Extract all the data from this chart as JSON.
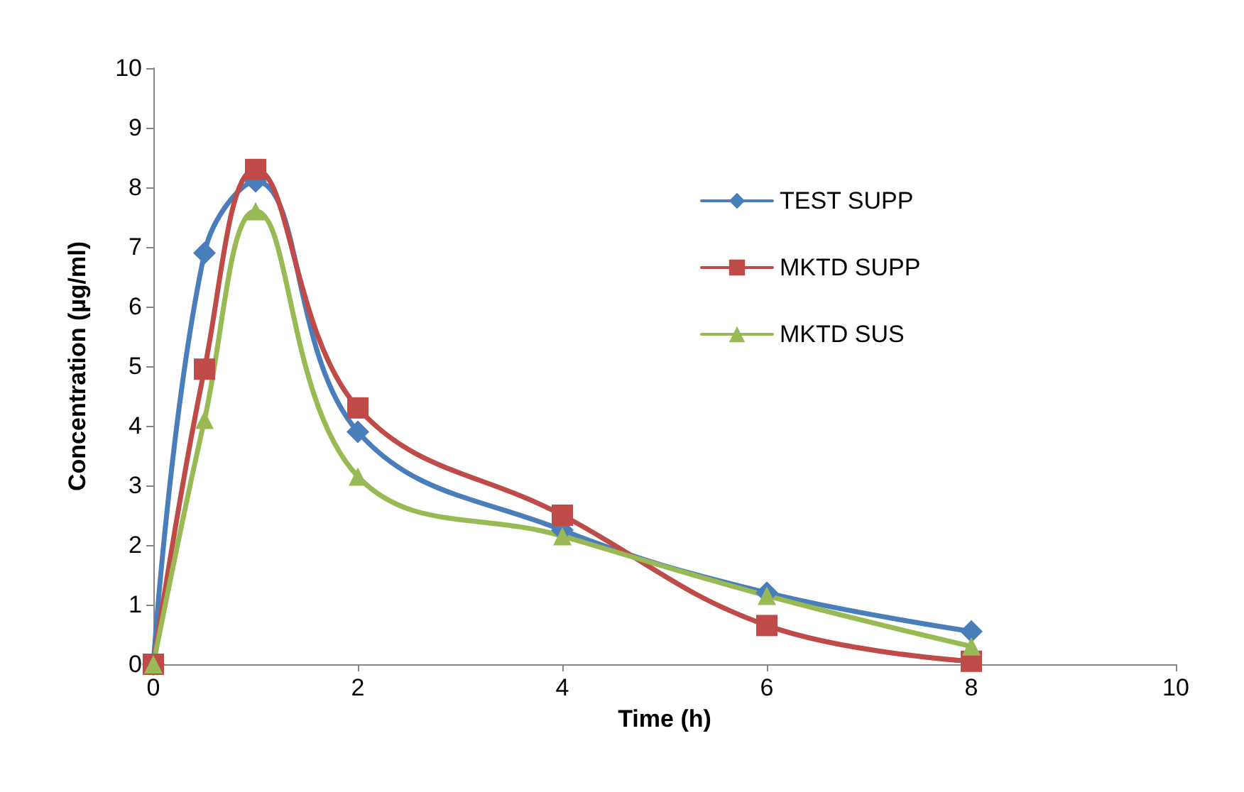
{
  "chart_data": {
    "type": "line",
    "xlabel": "Time (h)",
    "ylabel": "Concentration (µg/ml)",
    "xlim": [
      0,
      10
    ],
    "xticks": [
      0,
      2,
      4,
      6,
      8,
      10
    ],
    "ylim": [
      0,
      10
    ],
    "yticks": [
      0,
      1,
      2,
      3,
      4,
      5,
      6,
      7,
      8,
      9,
      10
    ],
    "grid": false,
    "legend": "right",
    "line_style": "solid",
    "series": [
      {
        "name": "TEST SUPP",
        "color": "#4a7ebb",
        "marker": "diamond",
        "x": [
          0,
          0.5,
          1,
          2,
          4,
          6,
          8
        ],
        "values": [
          0,
          6.9,
          8.1,
          3.9,
          2.25,
          1.2,
          0.55
        ]
      },
      {
        "name": "MKTD SUPP",
        "color": "#be4b48",
        "marker": "square",
        "x": [
          0,
          0.5,
          1,
          2,
          4,
          6,
          8
        ],
        "values": [
          0,
          4.95,
          8.3,
          4.3,
          2.5,
          0.65,
          0.05
        ]
      },
      {
        "name": "MKTD SUS",
        "color": "#98b954",
        "marker": "triangle",
        "x": [
          0,
          0.5,
          1,
          2,
          4,
          6,
          8
        ],
        "values": [
          0,
          4.1,
          7.6,
          3.15,
          2.15,
          1.15,
          0.3
        ]
      }
    ]
  }
}
